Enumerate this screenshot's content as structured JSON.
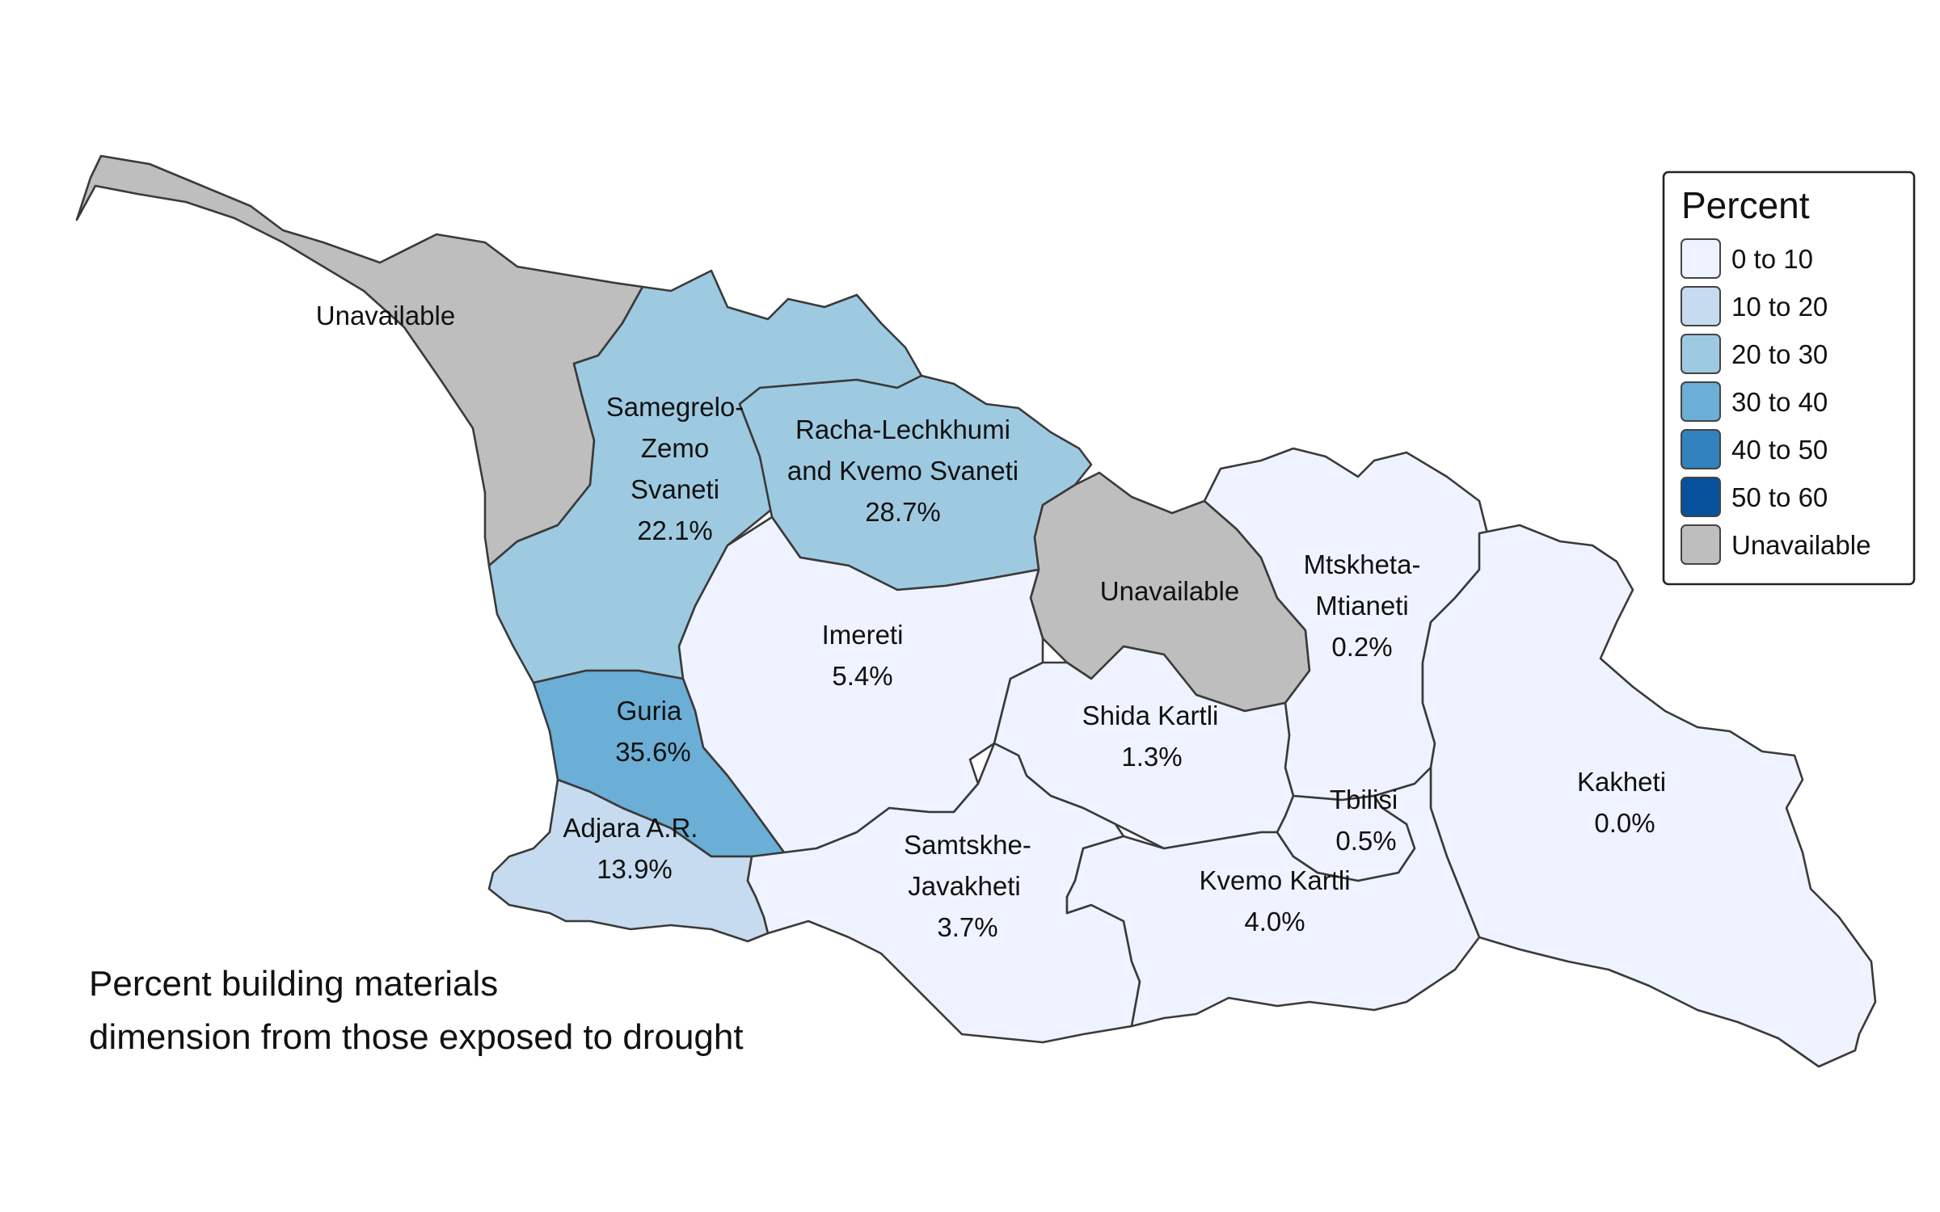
{
  "caption": {
    "line1": "Percent building materials",
    "line2": "dimension from those exposed to drought"
  },
  "legend": {
    "title": "Percent",
    "items": [
      {
        "label": "0 to 10",
        "color": "#eff3ff"
      },
      {
        "label": "10 to 20",
        "color": "#c6dbef"
      },
      {
        "label": "20 to 30",
        "color": "#9ecae1"
      },
      {
        "label": "30 to 40",
        "color": "#6baed6"
      },
      {
        "label": "40 to 50",
        "color": "#3182bd"
      },
      {
        "label": "50 to 60",
        "color": "#08519c"
      },
      {
        "label": "Unavailable",
        "color": "#bebebe"
      }
    ]
  },
  "regions": {
    "abkhazia": {
      "name": "Unavailable",
      "value": "",
      "color": "#bebebe"
    },
    "samegrelo": {
      "name": [
        "Samegrelo-",
        "Zemo",
        "Svaneti"
      ],
      "value": "22.1%",
      "color": "#9ecae1"
    },
    "racha": {
      "name": [
        "Racha-Lechkhumi",
        "and Kvemo Svaneti"
      ],
      "value": "28.7%",
      "color": "#9ecae1"
    },
    "south_ossetia": {
      "name": "Unavailable",
      "value": "",
      "color": "#bebebe"
    },
    "mtskheta": {
      "name": [
        "Mtskheta-",
        "Mtianeti"
      ],
      "value": "0.2%",
      "color": "#eff3ff"
    },
    "imereti": {
      "name": "Imereti",
      "value": "5.4%",
      "color": "#eff3ff"
    },
    "guria": {
      "name": "Guria",
      "value": "35.6%",
      "color": "#6baed6"
    },
    "shida_kartli": {
      "name": "Shida Kartli",
      "value": "1.3%",
      "color": "#eff3ff"
    },
    "adjara": {
      "name": "Adjara A.R.",
      "value": "13.9%",
      "color": "#c6dbef"
    },
    "samtskhe": {
      "name": [
        "Samtskhe-",
        "Javakheti"
      ],
      "value": "3.7%",
      "color": "#eff3ff"
    },
    "kvemo_kartli": {
      "name": "Kvemo Kartli",
      "value": "4.0%",
      "color": "#eff3ff"
    },
    "tbilisi": {
      "name": "Tbilisi",
      "value": "0.5%",
      "color": "#eff3ff"
    },
    "kakheti": {
      "name": "Kakheti",
      "value": "0.0%",
      "color": "#eff3ff"
    }
  }
}
